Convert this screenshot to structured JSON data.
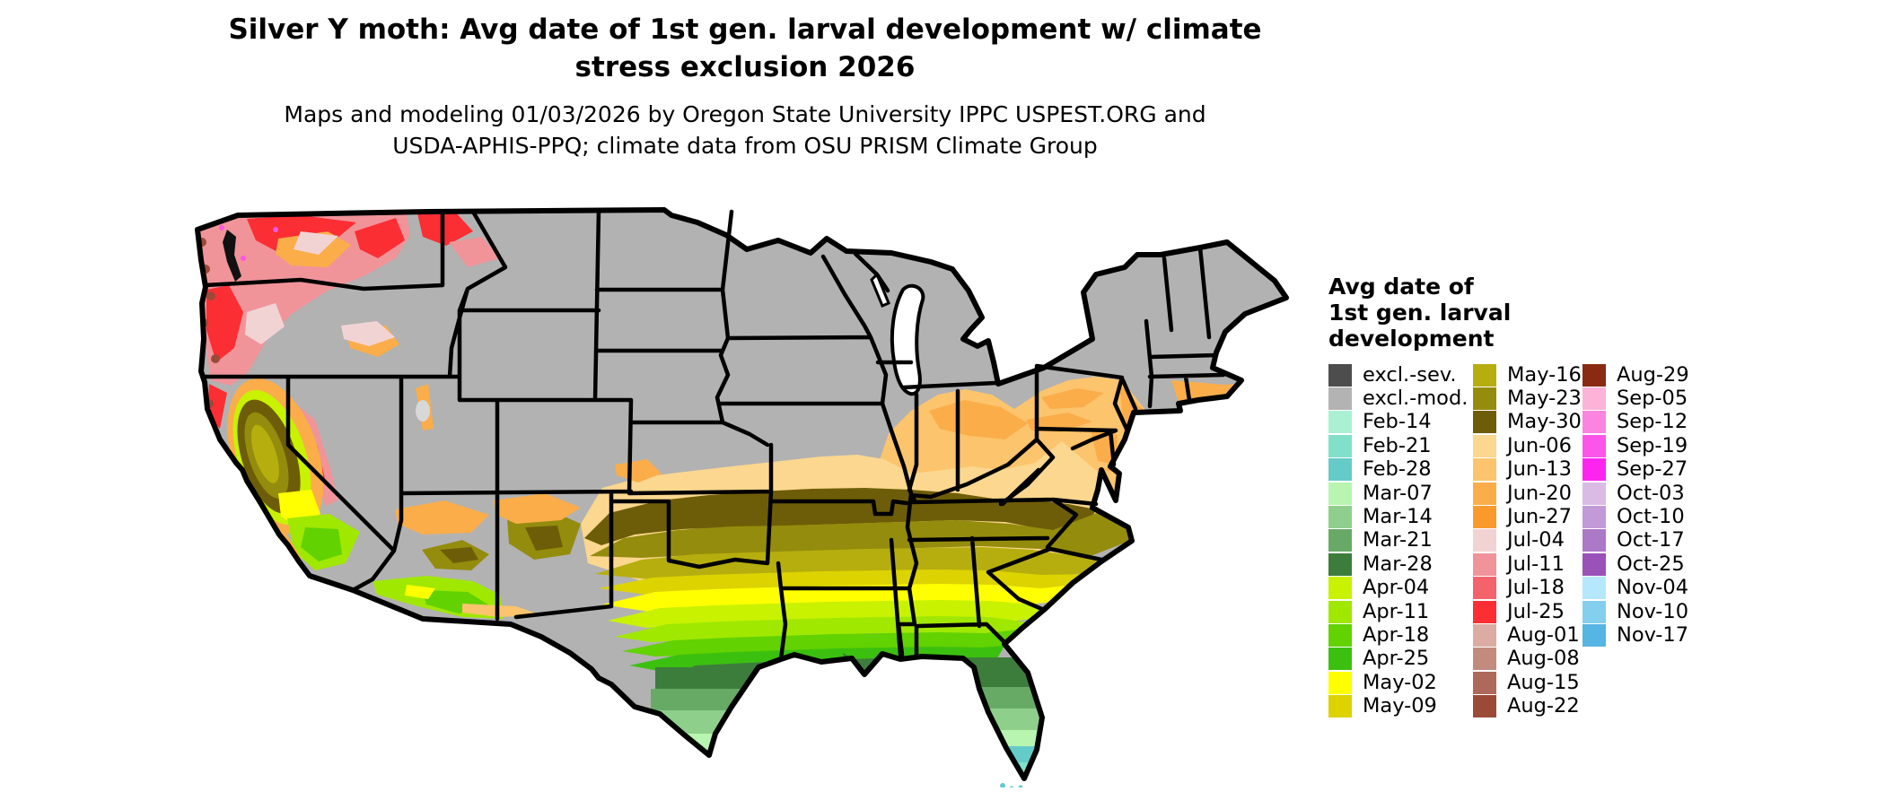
{
  "title": {
    "line1": "Silver Y moth: Avg date of 1st gen. larval development w/ climate",
    "line2": "stress exclusion 2026"
  },
  "subtitle": {
    "line1": "Maps and modeling 01/03/2026 by Oregon State University IPPC USPEST.ORG and",
    "line2": "USDA-APHIS-PPQ; climate data from OSU PRISM Climate Group"
  },
  "legend": {
    "title_lines": [
      "Avg date of",
      "1st gen. larval",
      "development"
    ],
    "columns": [
      {
        "items": [
          {
            "label": "excl.-sev.",
            "color": "#4d4d4d"
          },
          {
            "label": "excl.-mod.",
            "color": "#b3b3b3"
          },
          {
            "label": "Feb-14",
            "color": "#a9f1d2"
          },
          {
            "label": "Feb-21",
            "color": "#81e0c9"
          },
          {
            "label": "Feb-28",
            "color": "#65cbc9"
          },
          {
            "label": "Mar-07",
            "color": "#b7f5b0"
          },
          {
            "label": "Mar-14",
            "color": "#8ecf8c"
          },
          {
            "label": "Mar-21",
            "color": "#67aa66"
          },
          {
            "label": "Mar-28",
            "color": "#3d7d3c"
          },
          {
            "label": "Apr-04",
            "color": "#c8f200"
          },
          {
            "label": "Apr-11",
            "color": "#a0e800"
          },
          {
            "label": "Apr-18",
            "color": "#62d200"
          },
          {
            "label": "Apr-25",
            "color": "#3cc010"
          },
          {
            "label": "May-02",
            "color": "#ffff00"
          },
          {
            "label": "May-09",
            "color": "#dcd300"
          }
        ]
      },
      {
        "items": [
          {
            "label": "May-16",
            "color": "#b6ae0e"
          },
          {
            "label": "May-23",
            "color": "#948c0c"
          },
          {
            "label": "May-30",
            "color": "#6e5d08"
          },
          {
            "label": "Jun-06",
            "color": "#fbd78f"
          },
          {
            "label": "Jun-13",
            "color": "#fcc46c"
          },
          {
            "label": "Jun-20",
            "color": "#fbad4a"
          },
          {
            "label": "Jun-27",
            "color": "#fa9a2d"
          },
          {
            "label": "Jul-04",
            "color": "#f2d3d4"
          },
          {
            "label": "Jul-11",
            "color": "#f0949a"
          },
          {
            "label": "Jul-18",
            "color": "#f4626c"
          },
          {
            "label": "Jul-25",
            "color": "#fb2e34"
          },
          {
            "label": "Aug-01",
            "color": "#dcaba2"
          },
          {
            "label": "Aug-08",
            "color": "#c28b7e"
          },
          {
            "label": "Aug-15",
            "color": "#ae695a"
          },
          {
            "label": "Aug-22",
            "color": "#9c4a38"
          }
        ]
      },
      {
        "items": [
          {
            "label": "Aug-29",
            "color": "#8a2a12"
          },
          {
            "label": "Sep-05",
            "color": "#fdb3d7"
          },
          {
            "label": "Sep-12",
            "color": "#fb84e0"
          },
          {
            "label": "Sep-19",
            "color": "#fd55e9"
          },
          {
            "label": "Sep-27",
            "color": "#fd24f0"
          },
          {
            "label": "Oct-03",
            "color": "#dabbe6"
          },
          {
            "label": "Oct-10",
            "color": "#c39ad8"
          },
          {
            "label": "Oct-17",
            "color": "#ac78c8"
          },
          {
            "label": "Oct-25",
            "color": "#9a52b8"
          },
          {
            "label": "Nov-04",
            "color": "#b5e8fc"
          },
          {
            "label": "Nov-10",
            "color": "#85cfee"
          },
          {
            "label": "Nov-17",
            "color": "#56b5e2"
          }
        ]
      }
    ]
  },
  "map": {
    "region": "Contiguous United States",
    "excluded_fill": "#b2b2b2",
    "border_color": "#000000",
    "water_fill": "#ffffff"
  }
}
